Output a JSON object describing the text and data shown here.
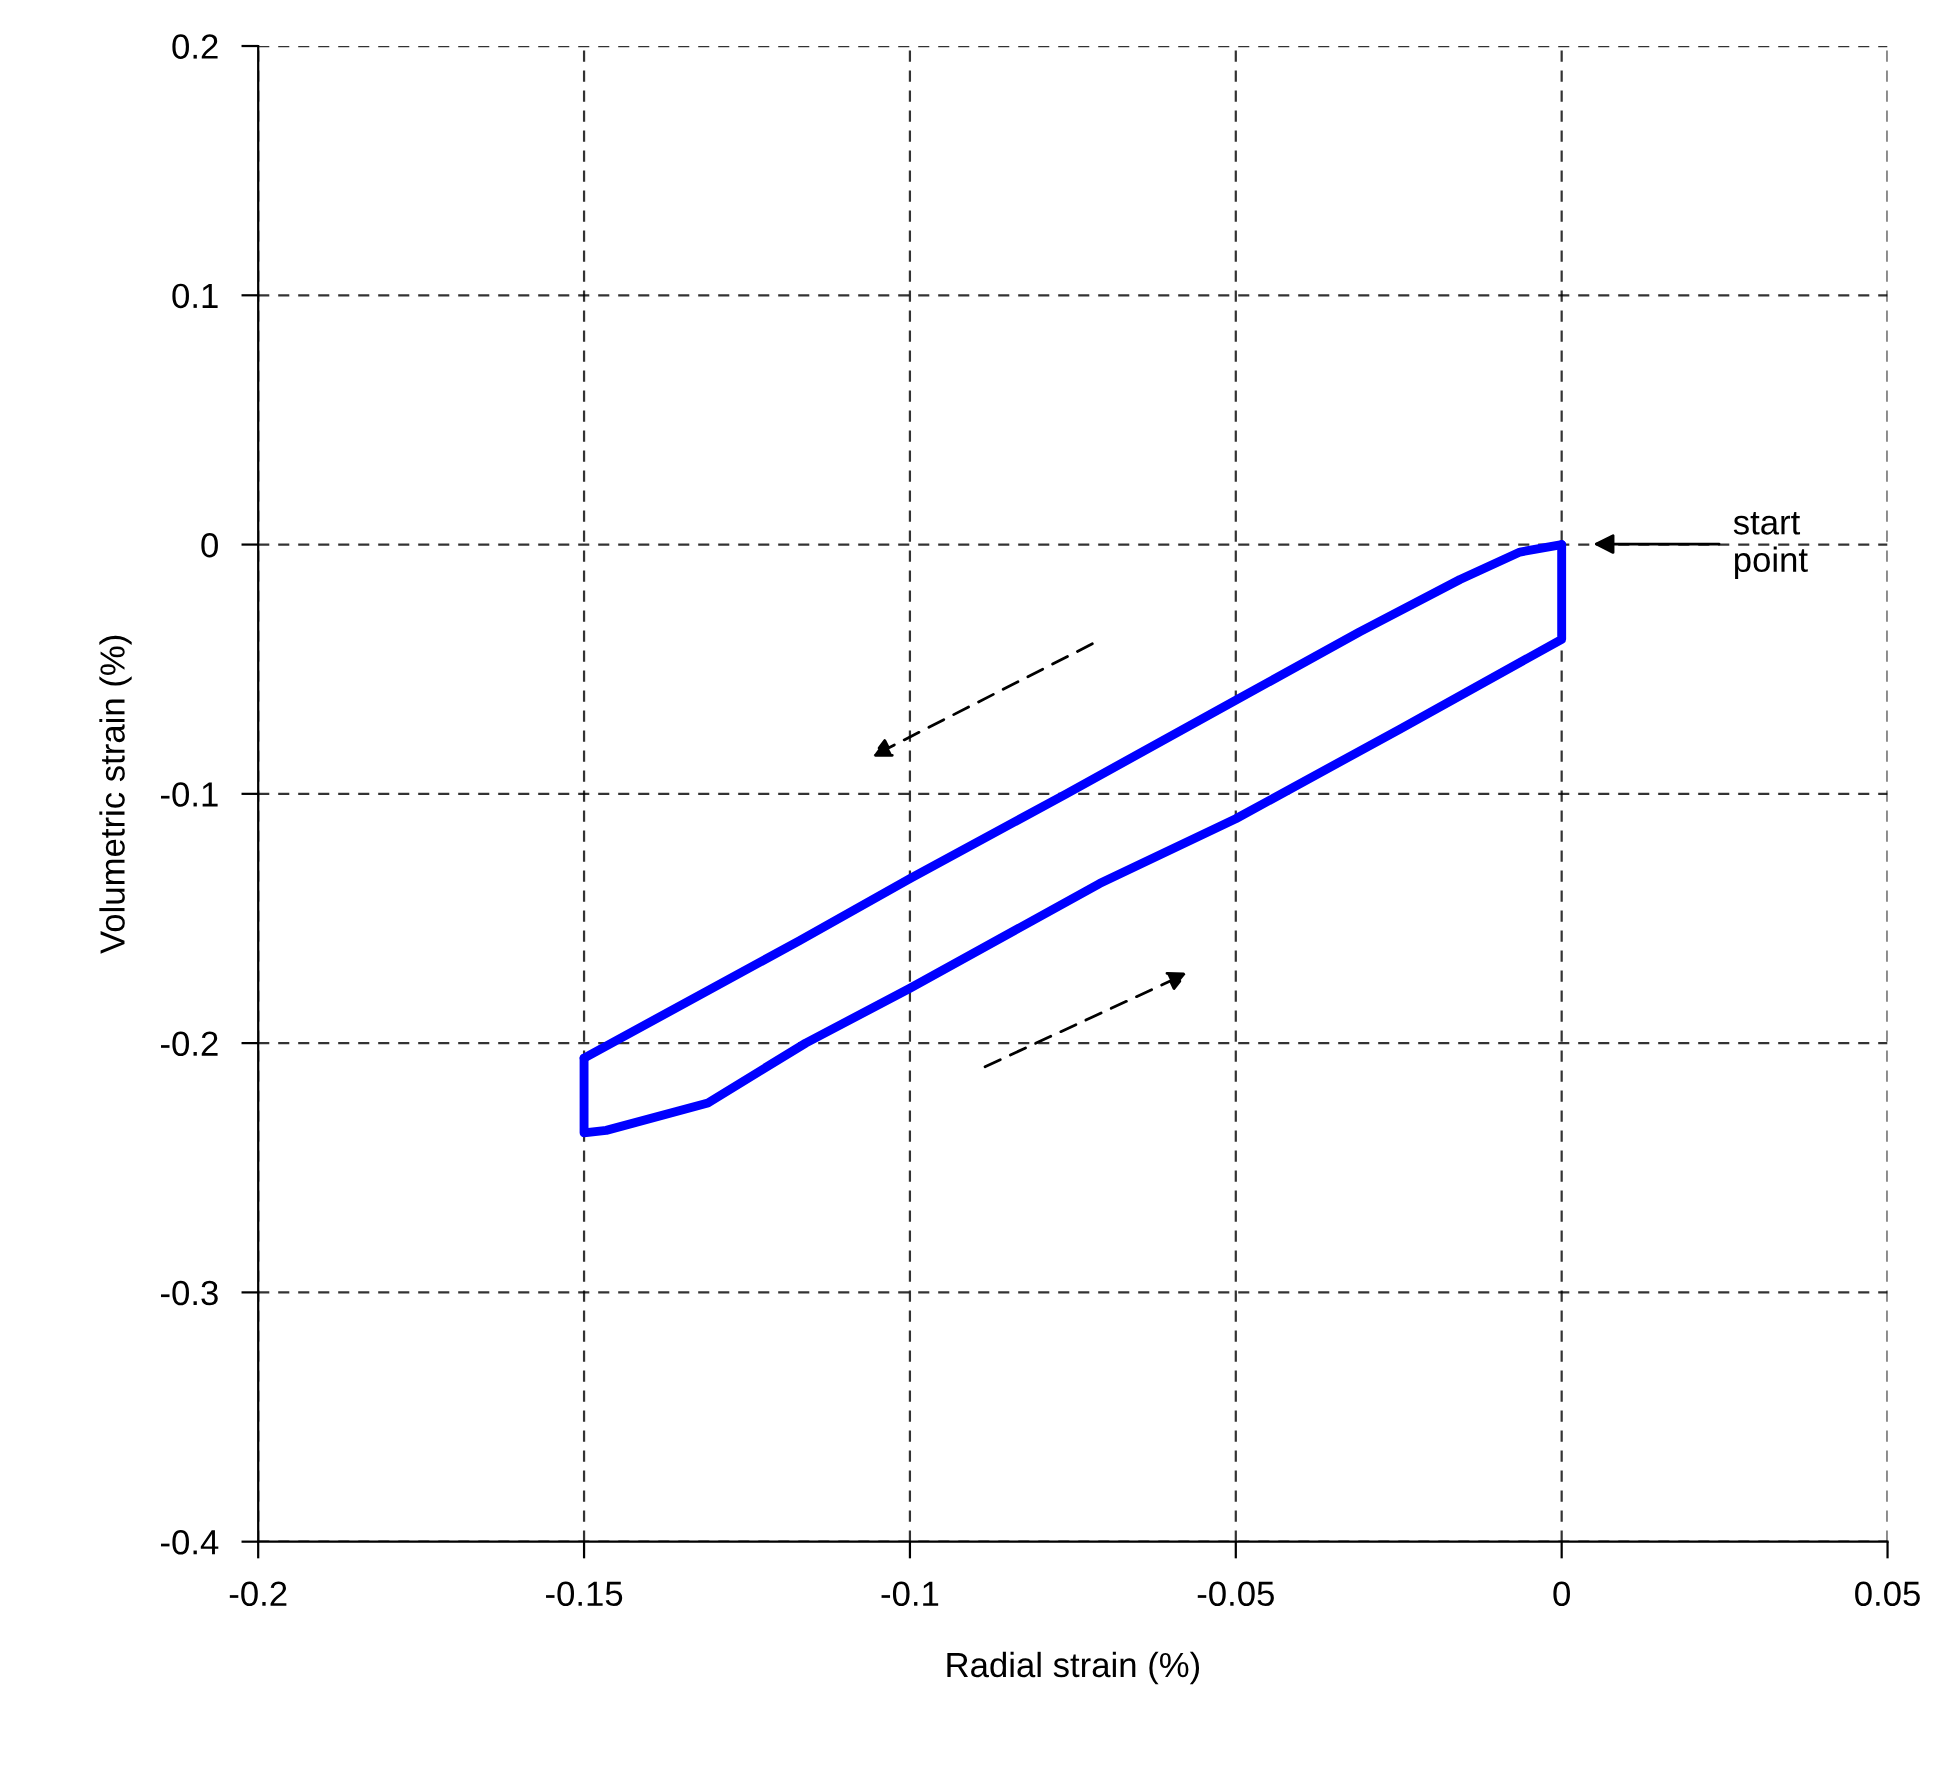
{
  "chart_data": {
    "type": "line",
    "xlabel": "Radial strain (%)",
    "ylabel": "Volumetric strain (%)",
    "series": [
      {
        "color": "#0000ff",
        "x": [
          -0.15,
          -0.117,
          -0.1,
          -0.076,
          -0.0497,
          -0.031,
          -0.0156,
          -0.0064,
          0
        ],
        "values": [
          -0.206,
          -0.159,
          -0.134,
          -0.1,
          -0.062,
          -0.035,
          -0.014,
          -0.003,
          0
        ]
      },
      {
        "color": "#0000ff",
        "x": [
          -0.15,
          -0.15,
          -0.1466,
          -0.131,
          -0.116,
          -0.1,
          -0.0709,
          -0.05,
          -0.0248,
          0,
          0
        ],
        "values": [
          -0.206,
          -0.236,
          -0.235,
          -0.224,
          -0.2,
          -0.178,
          -0.136,
          -0.11,
          -0.074,
          -0.038,
          0
        ]
      }
    ],
    "xlim": [
      -0.2,
      0.05
    ],
    "xticks": [
      -0.2,
      -0.15,
      -0.1,
      -0.05,
      0,
      0.05
    ],
    "ylim": [
      -0.4,
      0.2
    ],
    "yticks": [
      -0.4,
      -0.3,
      -0.2,
      -0.1,
      0,
      0.1,
      0.2
    ],
    "grid": true,
    "legend": false,
    "marker": "none",
    "line_style": "solid",
    "annotations": [
      "start\npoint"
    ]
  }
}
